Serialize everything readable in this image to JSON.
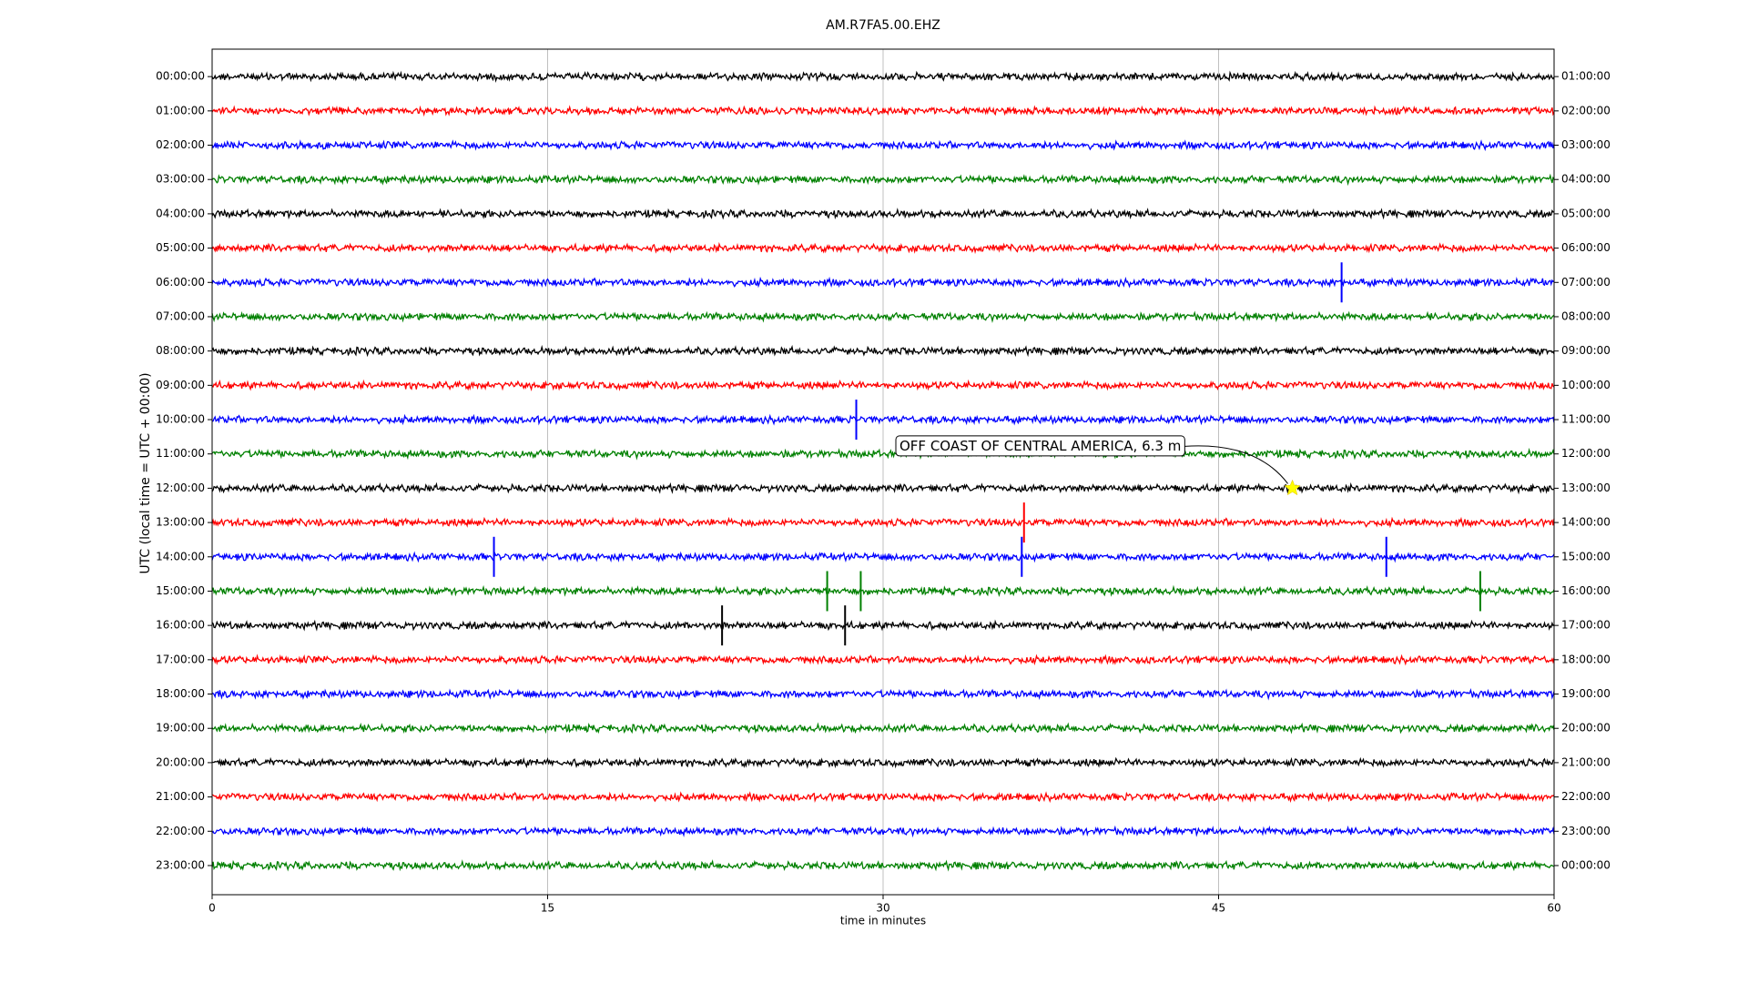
{
  "chart_data": {
    "type": "dayplot",
    "title": "AM.R7FA5.00.EHZ",
    "x_label": "time in minutes",
    "y_label": "UTC (local time = UTC + 00:00)",
    "xlim": [
      0,
      60
    ],
    "xticks": [
      0,
      15,
      30,
      45,
      60
    ],
    "grid": true,
    "colors": [
      "#000000",
      "#ff0000",
      "#0000ff",
      "#008000"
    ],
    "left_labels": [
      "00:00:00",
      "01:00:00",
      "02:00:00",
      "03:00:00",
      "04:00:00",
      "05:00:00",
      "06:00:00",
      "07:00:00",
      "08:00:00",
      "09:00:00",
      "10:00:00",
      "11:00:00",
      "12:00:00",
      "13:00:00",
      "14:00:00",
      "15:00:00",
      "16:00:00",
      "17:00:00",
      "18:00:00",
      "19:00:00",
      "20:00:00",
      "21:00:00",
      "22:00:00",
      "23:00:00"
    ],
    "right_labels": [
      "01:00:00",
      "02:00:00",
      "03:00:00",
      "04:00:00",
      "05:00:00",
      "06:00:00",
      "07:00:00",
      "08:00:00",
      "09:00:00",
      "10:00:00",
      "11:00:00",
      "12:00:00",
      "13:00:00",
      "14:00:00",
      "15:00:00",
      "16:00:00",
      "17:00:00",
      "18:00:00",
      "19:00:00",
      "20:00:00",
      "21:00:00",
      "22:00:00",
      "23:00:00",
      "00:00:00"
    ],
    "spikes": [
      {
        "row": 6,
        "x": 50.5
      },
      {
        "row": 10,
        "x": 28.8
      },
      {
        "row": 14,
        "x": 36.2
      },
      {
        "row": 14,
        "x": 52.5
      },
      {
        "row": 14,
        "x": 12.6
      },
      {
        "row": 15,
        "x": 27.5
      },
      {
        "row": 15,
        "x": 29
      },
      {
        "row": 15,
        "x": 56.7
      },
      {
        "row": 16,
        "x": 22.8
      },
      {
        "row": 16,
        "x": 28.3
      },
      {
        "row": 13,
        "x": 36.3
      }
    ],
    "event": {
      "label": "OFF COAST OF CENTRAL AMERICA, 6.3 m",
      "row": 12,
      "x": 48.3
    }
  }
}
